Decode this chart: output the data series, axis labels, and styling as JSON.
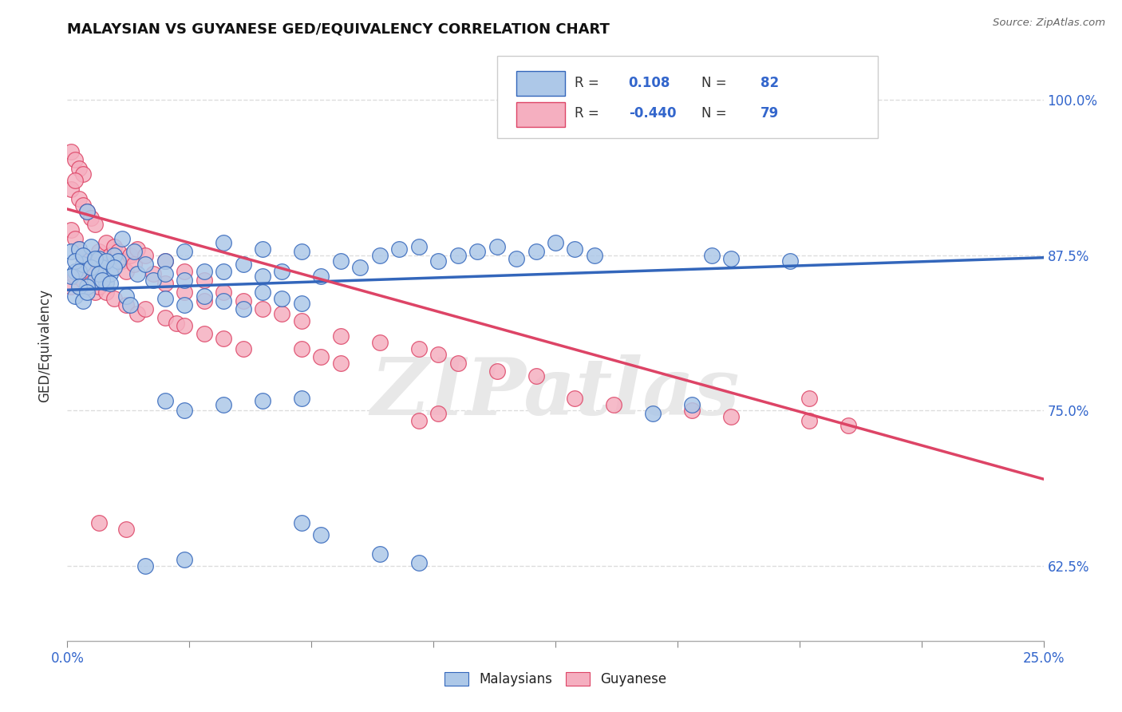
{
  "title": "MALAYSIAN VS GUYANESE GED/EQUIVALENCY CORRELATION CHART",
  "source": "Source: ZipAtlas.com",
  "ylabel": "GED/Equivalency",
  "ytick_labels": [
    "100.0%",
    "87.5%",
    "75.0%",
    "62.5%"
  ],
  "ytick_values": [
    1.0,
    0.875,
    0.75,
    0.625
  ],
  "xmin": 0.0,
  "xmax": 0.25,
  "ymin": 0.565,
  "ymax": 1.04,
  "watermark": "ZIPatlas",
  "legend_r_val_m": "0.108",
  "legend_n_val_m": "82",
  "legend_r_val_g": "-0.440",
  "legend_n_val_g": "79",
  "malaysian_color": "#adc8e8",
  "guyanese_color": "#f5afc0",
  "line_malaysian_color": "#3366bb",
  "line_guyanese_color": "#dd4466",
  "background_color": "#ffffff",
  "grid_color": "#dddddd",
  "malaysian_points": [
    [
      0.001,
      0.878
    ],
    [
      0.002,
      0.862
    ],
    [
      0.003,
      0.88
    ],
    [
      0.004,
      0.868
    ],
    [
      0.005,
      0.91
    ],
    [
      0.006,
      0.882
    ],
    [
      0.007,
      0.855
    ],
    [
      0.008,
      0.872
    ],
    [
      0.009,
      0.865
    ],
    [
      0.01,
      0.853
    ],
    [
      0.011,
      0.86
    ],
    [
      0.012,
      0.875
    ],
    [
      0.013,
      0.87
    ],
    [
      0.014,
      0.888
    ],
    [
      0.015,
      0.842
    ],
    [
      0.016,
      0.835
    ],
    [
      0.017,
      0.878
    ],
    [
      0.018,
      0.86
    ],
    [
      0.02,
      0.868
    ],
    [
      0.022,
      0.855
    ],
    [
      0.001,
      0.858
    ],
    [
      0.002,
      0.87
    ],
    [
      0.003,
      0.862
    ],
    [
      0.004,
      0.875
    ],
    [
      0.005,
      0.85
    ],
    [
      0.006,
      0.865
    ],
    [
      0.007,
      0.872
    ],
    [
      0.008,
      0.86
    ],
    [
      0.009,
      0.855
    ],
    [
      0.01,
      0.87
    ],
    [
      0.011,
      0.852
    ],
    [
      0.012,
      0.865
    ],
    [
      0.002,
      0.842
    ],
    [
      0.003,
      0.85
    ],
    [
      0.004,
      0.838
    ],
    [
      0.005,
      0.845
    ],
    [
      0.025,
      0.87
    ],
    [
      0.03,
      0.878
    ],
    [
      0.035,
      0.862
    ],
    [
      0.04,
      0.885
    ],
    [
      0.045,
      0.868
    ],
    [
      0.05,
      0.88
    ],
    [
      0.055,
      0.862
    ],
    [
      0.06,
      0.878
    ],
    [
      0.065,
      0.858
    ],
    [
      0.07,
      0.87
    ],
    [
      0.075,
      0.865
    ],
    [
      0.08,
      0.875
    ],
    [
      0.085,
      0.88
    ],
    [
      0.09,
      0.882
    ],
    [
      0.095,
      0.87
    ],
    [
      0.1,
      0.875
    ],
    [
      0.105,
      0.878
    ],
    [
      0.11,
      0.882
    ],
    [
      0.115,
      0.872
    ],
    [
      0.12,
      0.878
    ],
    [
      0.125,
      0.885
    ],
    [
      0.13,
      0.88
    ],
    [
      0.135,
      0.875
    ],
    [
      0.025,
      0.84
    ],
    [
      0.03,
      0.835
    ],
    [
      0.035,
      0.842
    ],
    [
      0.04,
      0.838
    ],
    [
      0.045,
      0.832
    ],
    [
      0.05,
      0.845
    ],
    [
      0.055,
      0.84
    ],
    [
      0.06,
      0.836
    ],
    [
      0.025,
      0.86
    ],
    [
      0.03,
      0.855
    ],
    [
      0.04,
      0.862
    ],
    [
      0.05,
      0.858
    ],
    [
      0.165,
      0.875
    ],
    [
      0.17,
      0.872
    ],
    [
      0.185,
      0.87
    ],
    [
      0.15,
      0.748
    ],
    [
      0.16,
      0.755
    ],
    [
      0.04,
      0.755
    ],
    [
      0.05,
      0.758
    ],
    [
      0.06,
      0.76
    ],
    [
      0.025,
      0.758
    ],
    [
      0.03,
      0.75
    ],
    [
      0.06,
      0.66
    ],
    [
      0.065,
      0.65
    ],
    [
      0.02,
      0.625
    ],
    [
      0.03,
      0.63
    ],
    [
      0.08,
      0.635
    ],
    [
      0.09,
      0.628
    ]
  ],
  "guyanese_points": [
    [
      0.001,
      0.958
    ],
    [
      0.002,
      0.952
    ],
    [
      0.003,
      0.945
    ],
    [
      0.004,
      0.94
    ],
    [
      0.001,
      0.928
    ],
    [
      0.002,
      0.935
    ],
    [
      0.003,
      0.92
    ],
    [
      0.004,
      0.915
    ],
    [
      0.005,
      0.91
    ],
    [
      0.006,
      0.905
    ],
    [
      0.007,
      0.9
    ],
    [
      0.001,
      0.895
    ],
    [
      0.002,
      0.888
    ],
    [
      0.003,
      0.88
    ],
    [
      0.004,
      0.875
    ],
    [
      0.005,
      0.87
    ],
    [
      0.006,
      0.865
    ],
    [
      0.007,
      0.86
    ],
    [
      0.008,
      0.878
    ],
    [
      0.009,
      0.87
    ],
    [
      0.01,
      0.885
    ],
    [
      0.011,
      0.875
    ],
    [
      0.012,
      0.882
    ],
    [
      0.013,
      0.878
    ],
    [
      0.014,
      0.87
    ],
    [
      0.015,
      0.862
    ],
    [
      0.016,
      0.875
    ],
    [
      0.017,
      0.868
    ],
    [
      0.018,
      0.88
    ],
    [
      0.02,
      0.875
    ],
    [
      0.022,
      0.86
    ],
    [
      0.001,
      0.85
    ],
    [
      0.002,
      0.858
    ],
    [
      0.003,
      0.862
    ],
    [
      0.004,
      0.855
    ],
    [
      0.005,
      0.848
    ],
    [
      0.006,
      0.852
    ],
    [
      0.007,
      0.845
    ],
    [
      0.008,
      0.85
    ],
    [
      0.01,
      0.845
    ],
    [
      0.012,
      0.84
    ],
    [
      0.015,
      0.835
    ],
    [
      0.018,
      0.828
    ],
    [
      0.02,
      0.832
    ],
    [
      0.025,
      0.825
    ],
    [
      0.028,
      0.82
    ],
    [
      0.03,
      0.818
    ],
    [
      0.035,
      0.812
    ],
    [
      0.04,
      0.808
    ],
    [
      0.045,
      0.8
    ],
    [
      0.025,
      0.87
    ],
    [
      0.03,
      0.862
    ],
    [
      0.035,
      0.855
    ],
    [
      0.04,
      0.845
    ],
    [
      0.045,
      0.838
    ],
    [
      0.05,
      0.832
    ],
    [
      0.055,
      0.828
    ],
    [
      0.06,
      0.822
    ],
    [
      0.025,
      0.852
    ],
    [
      0.03,
      0.845
    ],
    [
      0.035,
      0.838
    ],
    [
      0.07,
      0.81
    ],
    [
      0.08,
      0.805
    ],
    [
      0.09,
      0.8
    ],
    [
      0.095,
      0.795
    ],
    [
      0.1,
      0.788
    ],
    [
      0.11,
      0.782
    ],
    [
      0.12,
      0.778
    ],
    [
      0.06,
      0.8
    ],
    [
      0.065,
      0.793
    ],
    [
      0.07,
      0.788
    ],
    [
      0.13,
      0.76
    ],
    [
      0.14,
      0.755
    ],
    [
      0.16,
      0.75
    ],
    [
      0.17,
      0.745
    ],
    [
      0.19,
      0.742
    ],
    [
      0.2,
      0.738
    ],
    [
      0.09,
      0.742
    ],
    [
      0.095,
      0.748
    ],
    [
      0.19,
      0.76
    ],
    [
      0.008,
      0.66
    ],
    [
      0.015,
      0.655
    ]
  ],
  "malaysian_line": {
    "x0": 0.0,
    "y0": 0.847,
    "x1": 0.25,
    "y1": 0.873
  },
  "guyanese_line": {
    "x0": 0.0,
    "y0": 0.912,
    "x1": 0.25,
    "y1": 0.695
  }
}
